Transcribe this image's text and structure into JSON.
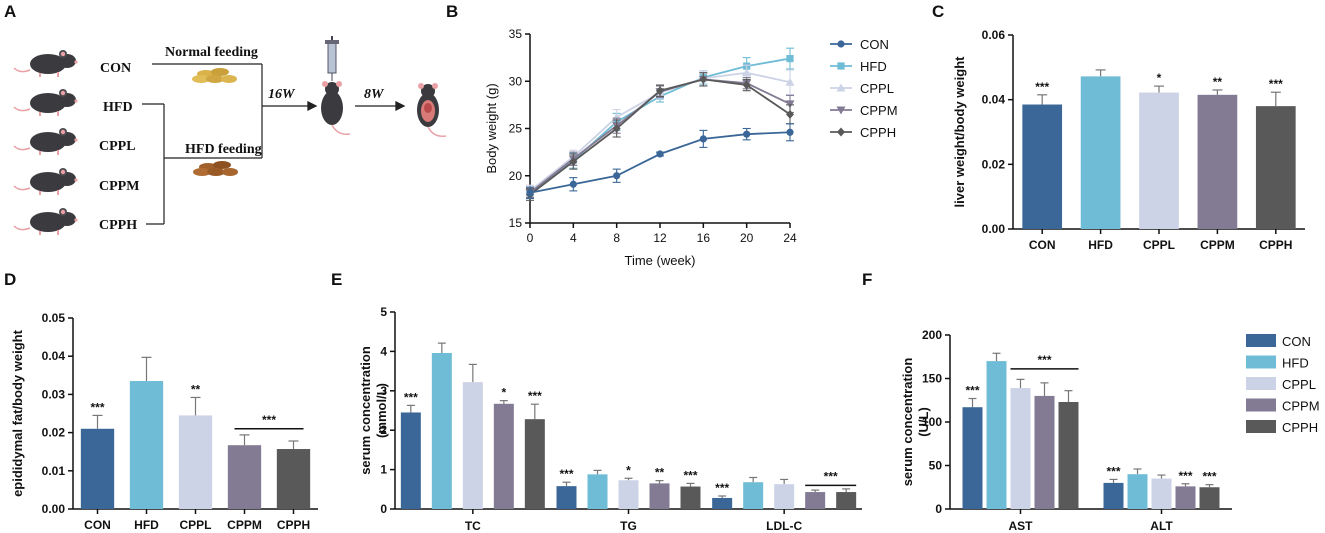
{
  "colors": {
    "CON": "#3a6797",
    "HFD": "#6fbcd6",
    "CPPL": "#cdd3e6",
    "CPPM": "#837a94",
    "CPPH": "#595959"
  },
  "panel_labels": {
    "A": "A",
    "B": "B",
    "C": "C",
    "D": "D",
    "E": "E",
    "F": "F"
  },
  "schematic": {
    "groups": [
      "CON",
      "HFD",
      "CPPL",
      "CPPM",
      "CPPH"
    ],
    "normal_feeding": "Normal feeding",
    "hfd_feeding": "HFD feeding",
    "step1": "16W",
    "step2": "8W"
  },
  "chart_data": [
    {
      "id": "B",
      "type": "line",
      "title": "",
      "xlabel": "Time (week)",
      "ylabel": "Body weight (g)",
      "x": [
        0,
        4,
        8,
        12,
        16,
        20,
        24
      ],
      "xticks": [
        "0",
        "4",
        "8",
        "12",
        "16",
        "20",
        "24"
      ],
      "ylim": [
        15,
        35
      ],
      "yticks": [
        "15",
        "20",
        "25",
        "30",
        "35"
      ],
      "series": [
        {
          "name": "CON",
          "values": [
            18.2,
            19.1,
            20.0,
            22.3,
            23.9,
            24.4,
            24.6
          ],
          "err": [
            0.6,
            0.7,
            0.7,
            0.2,
            0.9,
            0.6,
            0.9
          ]
        },
        {
          "name": "HFD",
          "values": [
            18.1,
            21.6,
            25.7,
            28.4,
            30.4,
            31.6,
            32.4
          ],
          "err": [
            0.5,
            0.8,
            0.9,
            0.6,
            0.7,
            0.9,
            1.1
          ]
        },
        {
          "name": "CPPL",
          "values": [
            18.4,
            22.0,
            26.2,
            28.8,
            30.3,
            30.9,
            29.9
          ],
          "err": [
            0.6,
            0.7,
            0.8,
            0.7,
            0.8,
            0.8,
            1.3
          ]
        },
        {
          "name": "CPPM",
          "values": [
            18.2,
            21.8,
            25.3,
            28.9,
            30.2,
            29.8,
            27.6
          ],
          "err": [
            0.5,
            0.7,
            0.8,
            0.6,
            0.7,
            0.6,
            0.9
          ]
        },
        {
          "name": "CPPH",
          "values": [
            18.0,
            21.5,
            25.0,
            29.0,
            30.2,
            29.6,
            26.5
          ],
          "err": [
            0.6,
            0.8,
            0.9,
            0.6,
            0.7,
            0.6,
            1.0
          ]
        }
      ],
      "legend": [
        "CON",
        "HFD",
        "CPPL",
        "CPPM",
        "CPPH"
      ]
    },
    {
      "id": "C",
      "type": "bar",
      "xlabel": "",
      "ylabel": "liver weight/body weight",
      "categories": [
        "CON",
        "HFD",
        "CPPL",
        "CPPM",
        "CPPH"
      ],
      "values": [
        0.0385,
        0.0472,
        0.0422,
        0.0415,
        0.038
      ],
      "err": [
        0.003,
        0.002,
        0.002,
        0.0015,
        0.0043
      ],
      "sig": [
        "***",
        "",
        "*",
        "**",
        "***"
      ],
      "ylim": [
        0,
        0.06
      ],
      "yticks": [
        "0.00",
        "0.02",
        "0.04",
        "0.06"
      ]
    },
    {
      "id": "D",
      "type": "bar",
      "xlabel": "",
      "ylabel": "epididymal fat/body weight",
      "categories": [
        "CON",
        "HFD",
        "CPPL",
        "CPPM",
        "CPPH"
      ],
      "values": [
        0.021,
        0.0335,
        0.0245,
        0.0167,
        0.0157
      ],
      "err": [
        0.0035,
        0.0062,
        0.0047,
        0.0027,
        0.0021
      ],
      "sig": [
        "***",
        "",
        "**",
        "",
        ""
      ],
      "bracket": {
        "label": "***",
        "from": "CPPM",
        "to": "CPPH",
        "y": 0.021
      },
      "ylim": [
        0,
        0.05
      ],
      "yticks": [
        "0.00",
        "0.01",
        "0.02",
        "0.03",
        "0.04",
        "0.05"
      ]
    },
    {
      "id": "E",
      "type": "bar",
      "xlabel": "",
      "ylabel": "serum concentration\n(mmol/L)",
      "categories": [
        "TC",
        "TG",
        "LDL-C"
      ],
      "series": [
        {
          "name": "CON",
          "values": [
            2.45,
            0.58,
            0.28
          ],
          "err": [
            0.18,
            0.1,
            0.05
          ],
          "sig": [
            "***",
            "***",
            "***"
          ]
        },
        {
          "name": "HFD",
          "values": [
            3.96,
            0.88,
            0.68
          ],
          "err": [
            0.25,
            0.1,
            0.12
          ],
          "sig": [
            "",
            "",
            ""
          ]
        },
        {
          "name": "CPPL",
          "values": [
            3.22,
            0.73,
            0.63
          ],
          "err": [
            0.45,
            0.05,
            0.12
          ],
          "sig": [
            "",
            "*",
            ""
          ]
        },
        {
          "name": "CPPM",
          "values": [
            2.67,
            0.65,
            0.43
          ],
          "err": [
            0.08,
            0.07,
            0.05
          ],
          "sig": [
            "*",
            "**",
            ""
          ]
        },
        {
          "name": "CPPH",
          "values": [
            2.28,
            0.57,
            0.43
          ],
          "err": [
            0.38,
            0.08,
            0.08
          ],
          "sig": [
            "***",
            "***",
            ""
          ]
        }
      ],
      "bracket": {
        "label": "***",
        "category": "LDL-C",
        "from": "CPPM",
        "to": "CPPH",
        "y": 0.6
      },
      "ylim": [
        0,
        5
      ],
      "yticks": [
        "0",
        "1",
        "2",
        "3",
        "4",
        "5"
      ]
    },
    {
      "id": "F",
      "type": "bar",
      "xlabel": "",
      "ylabel": "serum concentration\n(U/L)",
      "categories": [
        "AST",
        "ALT"
      ],
      "series": [
        {
          "name": "CON",
          "values": [
            117,
            30
          ],
          "err": [
            10,
            4
          ],
          "sig": [
            "***",
            "***"
          ]
        },
        {
          "name": "HFD",
          "values": [
            170,
            40
          ],
          "err": [
            9,
            6
          ],
          "sig": [
            "",
            ""
          ]
        },
        {
          "name": "CPPL",
          "values": [
            139,
            35
          ],
          "err": [
            10,
            4
          ],
          "sig": [
            "",
            ""
          ]
        },
        {
          "name": "CPPM",
          "values": [
            130,
            26
          ],
          "err": [
            15,
            3
          ],
          "sig": [
            "",
            "***"
          ]
        },
        {
          "name": "CPPH",
          "values": [
            123,
            25
          ],
          "err": [
            13,
            3
          ],
          "sig": [
            "",
            "***"
          ]
        }
      ],
      "bracket": {
        "label": "***",
        "category": "AST",
        "from": "CPPL",
        "to": "CPPH",
        "y": 161
      },
      "ylim": [
        0,
        200
      ],
      "yticks": [
        "0",
        "50",
        "100",
        "150",
        "200"
      ],
      "legend": [
        "CON",
        "HFD",
        "CPPL",
        "CPPM",
        "CPPH"
      ],
      "legend_position": "right"
    }
  ]
}
